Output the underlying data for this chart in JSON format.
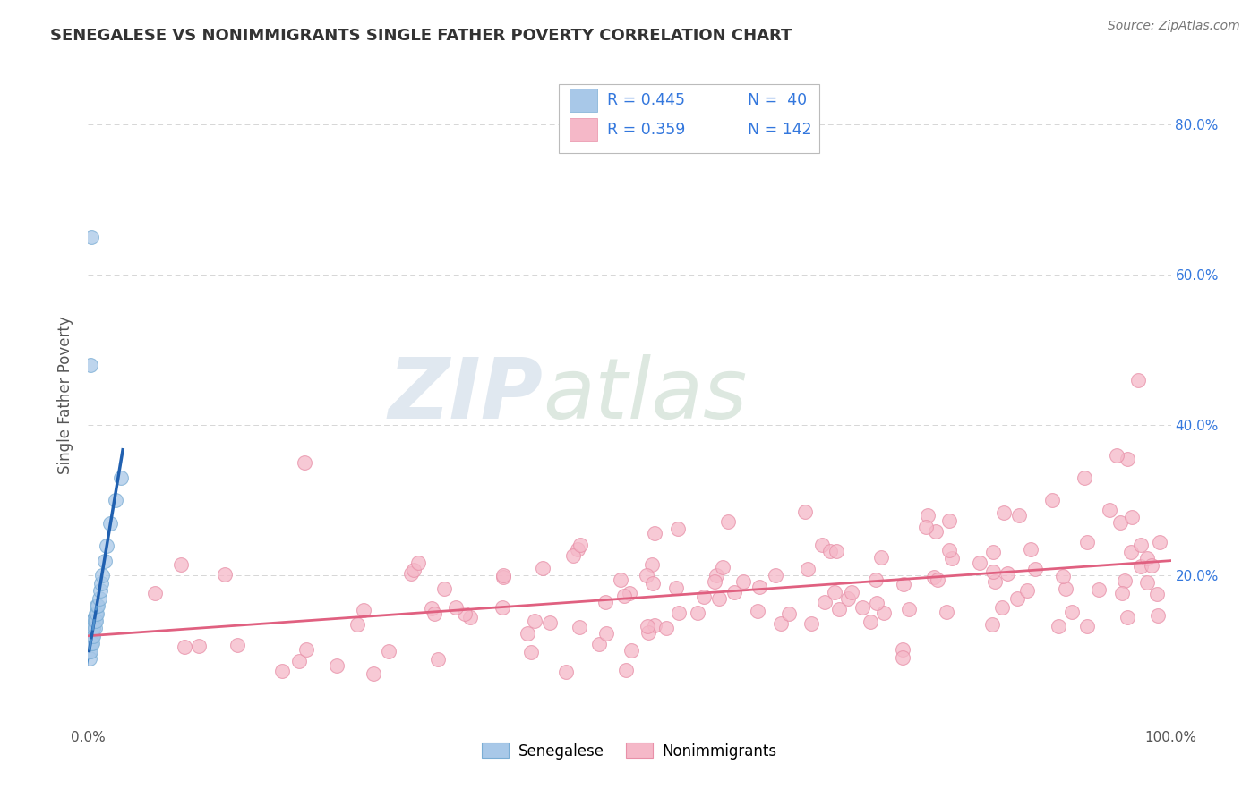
{
  "title": "SENEGALESE VS NONIMMIGRANTS SINGLE FATHER POVERTY CORRELATION CHART",
  "source": "Source: ZipAtlas.com",
  "ylabel": "Single Father Poverty",
  "xlim": [
    0.0,
    1.0
  ],
  "ylim": [
    0.0,
    0.88
  ],
  "background_color": "#ffffff",
  "grid_color": "#cccccc",
  "legend_r1": "R = 0.445",
  "legend_n1": "N =  40",
  "legend_r2": "R = 0.359",
  "legend_n2": "N = 142",
  "senegalese_color": "#a8c8e8",
  "senegalese_edge": "#7aadd4",
  "nonimmigrant_color": "#f5b8c8",
  "nonimmigrant_edge": "#e890a8",
  "trendline_blue_color": "#2060b0",
  "trendline_blue_dashed": "#5090cc",
  "trendline_pink_color": "#e06080",
  "legend_label1": "Senegalese",
  "legend_label2": "Nonimmigrants",
  "watermark_zip": "ZIP",
  "watermark_atlas": "atlas",
  "legend_text_color": "#3377dd",
  "right_tick_color": "#3377dd",
  "title_color": "#333333",
  "ylabel_color": "#555555"
}
